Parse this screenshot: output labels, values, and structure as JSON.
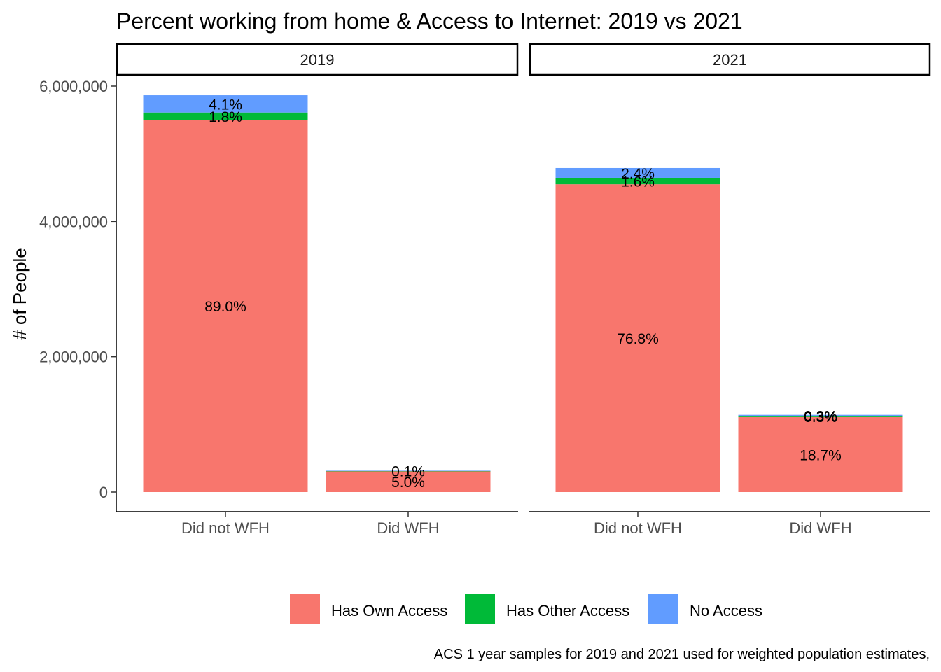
{
  "chart_data": {
    "type": "bar",
    "stacked": true,
    "title": "Percent working from home & Access to Internet: 2019 vs 2021",
    "caption": "ACS 1 year samples for 2019 and 2021 used for weighted population estimates,",
    "ylabel": "# of People",
    "xlabel": "",
    "ylim": [
      0,
      6000000
    ],
    "yticks": [
      0,
      2000000,
      4000000,
      6000000
    ],
    "ytick_labels": [
      "0",
      "2,000,000",
      "4,000,000",
      "6,000,000"
    ],
    "grid": false,
    "legend_position": "bottom",
    "categories": [
      "Did not WFH",
      "Did WFH"
    ],
    "series": [
      {
        "name": "Has Own Access",
        "color": "#F8766D"
      },
      {
        "name": "Has Other Access",
        "color": "#00BA38"
      },
      {
        "name": "No Access",
        "color": "#619CFF"
      }
    ],
    "panels": [
      {
        "name": "2019",
        "bars": [
          {
            "category": "Did not WFH",
            "values": [
              5500000,
              110000,
              255000
            ],
            "labels": [
              "89.0%",
              "1.8%",
              "4.1%"
            ]
          },
          {
            "category": "Did WFH",
            "values": [
              308000,
              3000,
              6000
            ],
            "labels": [
              "5.0%",
              "",
              "0.1%"
            ]
          }
        ]
      },
      {
        "name": "2021",
        "bars": [
          {
            "category": "Did not WFH",
            "values": [
              4550000,
              95000,
              145000
            ],
            "labels": [
              "76.8%",
              "1.6%",
              "2.4%"
            ]
          },
          {
            "category": "Did WFH",
            "values": [
              1108000,
              15000,
              18000
            ],
            "labels": [
              "18.7%",
              "0.3%",
              "0.3%"
            ]
          }
        ]
      }
    ]
  }
}
